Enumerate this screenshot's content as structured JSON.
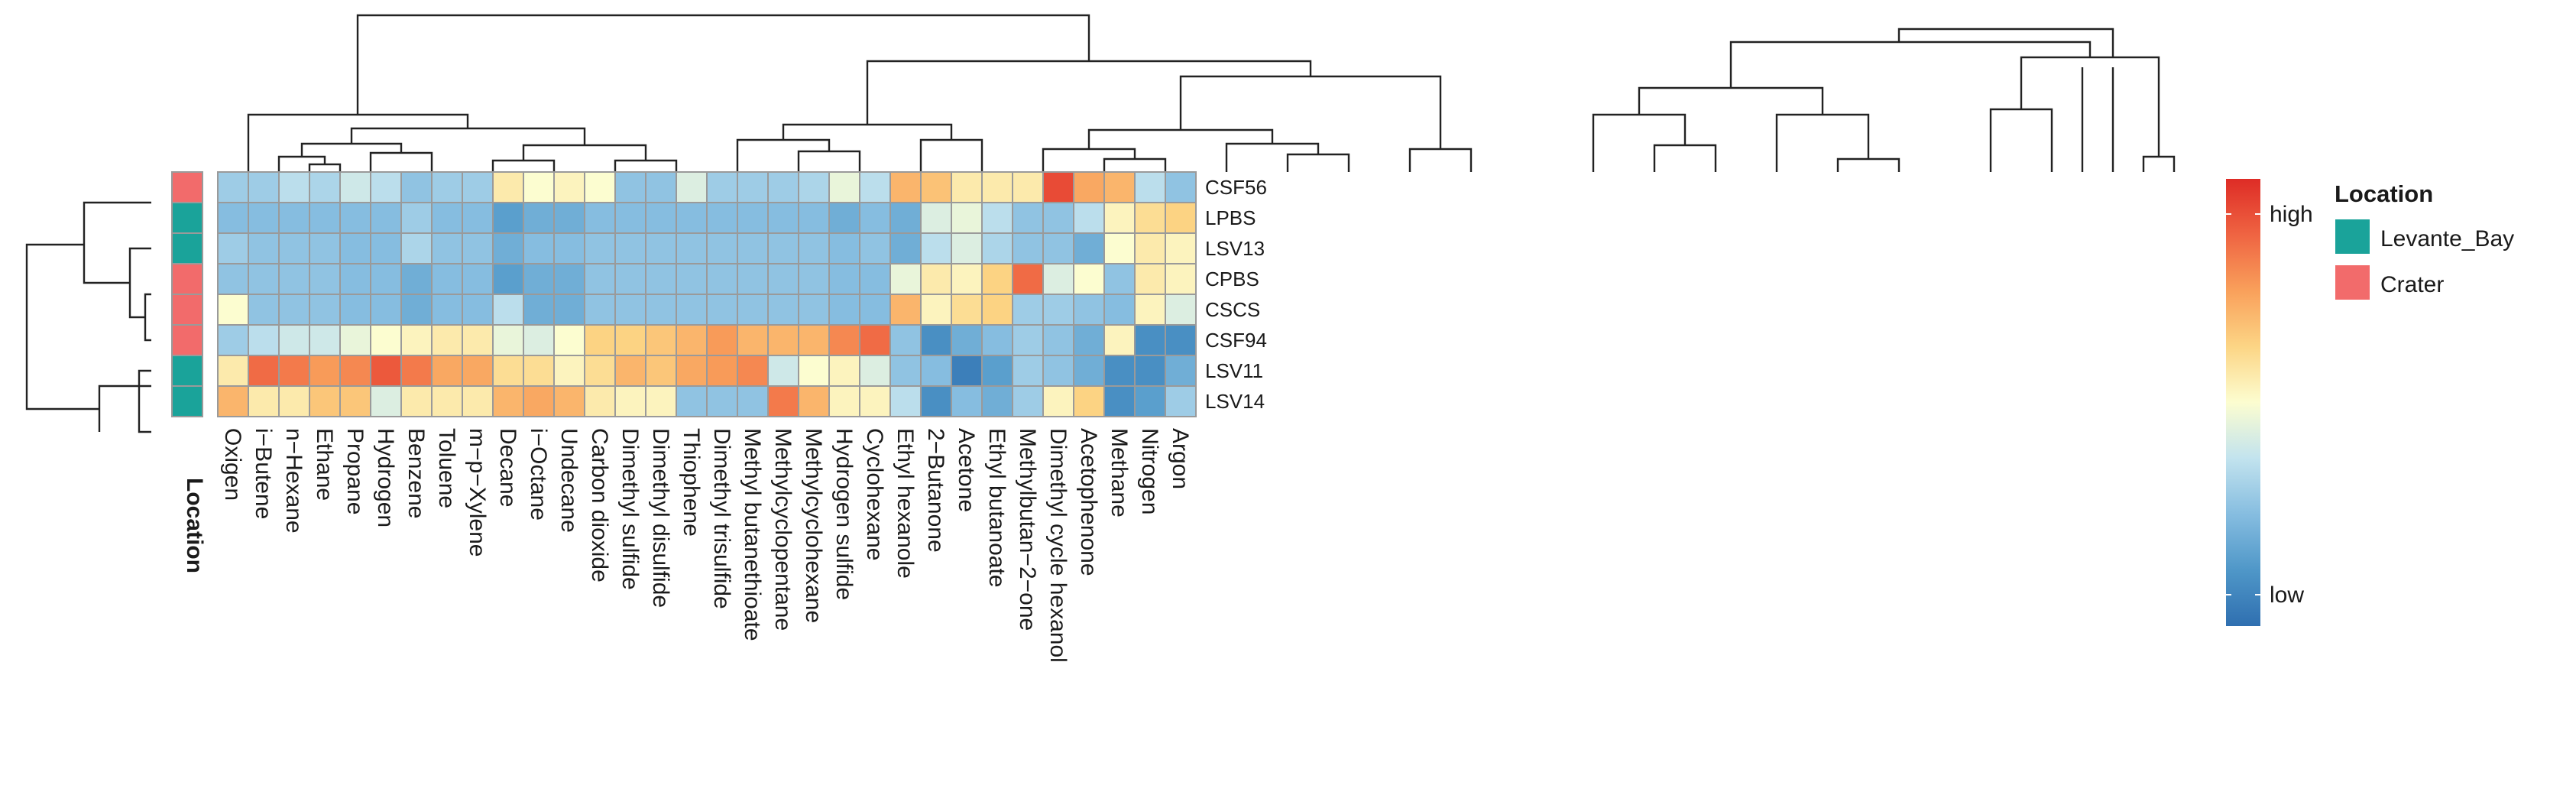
{
  "chart_data": {
    "type": "heatmap",
    "title": "",
    "columns": [
      "Oxigen",
      "i−Butene",
      "n−Hexane",
      "Ethane",
      "Propane",
      "Hydrogen",
      "Benzene",
      "Toluene",
      "m−p−Xylene",
      "Decane",
      "i−Octane",
      "Undecane",
      "Carbon dioxide",
      "Dimethyl sulfide",
      "Dimethyl disulfide",
      "Thiophene",
      "Dimethyl trisulfide",
      "Methyl butanethioate",
      "Methylcyclopentane",
      "Methylcyclohexane",
      "Hydrogen sulfide",
      "Cyclohexane",
      "Ethyl hexanole",
      "2−Butanone",
      "Acetone",
      "Ethyl butanoate",
      "Methylbutan−2−one",
      "Dimethyl cycle hexanol",
      "Acetophenone",
      "Methane",
      "Nitrogen",
      "Argon"
    ],
    "rows": [
      "CSF56",
      "LPBS",
      "LSV13",
      "CPBS",
      "CSCS",
      "CSF94",
      "LSV11",
      "LSV14"
    ],
    "annotation": {
      "axis_label": "Location",
      "title": "Location",
      "levels": [
        {
          "name": "Levante_Bay",
          "color": "#1aa39a"
        },
        {
          "name": "Crater",
          "color": "#f26b6b"
        }
      ],
      "row_groups": [
        "Crater",
        "Levante_Bay",
        "Levante_Bay",
        "Crater",
        "Crater",
        "Crater",
        "Levante_Bay",
        "Levante_Bay"
      ]
    },
    "color_scale": {
      "low_label": "low",
      "high_label": "high",
      "range": [
        0,
        1
      ],
      "stops": [
        "#2f6fb0",
        "#4f97c8",
        "#86bde0",
        "#c2e3ee",
        "#fcfdd0",
        "#fcd585",
        "#f9a05b",
        "#ef6442",
        "#de2c26"
      ]
    },
    "values": [
      [
        0.3,
        0.3,
        0.36,
        0.33,
        0.4,
        0.36,
        0.27,
        0.3,
        0.3,
        0.56,
        0.5,
        0.53,
        0.5,
        0.27,
        0.27,
        0.43,
        0.3,
        0.3,
        0.3,
        0.33,
        0.46,
        0.36,
        0.7,
        0.67,
        0.56,
        0.56,
        0.56,
        0.93,
        0.73,
        0.7,
        0.36,
        0.27
      ],
      [
        0.25,
        0.25,
        0.25,
        0.25,
        0.25,
        0.25,
        0.3,
        0.25,
        0.25,
        0.15,
        0.2,
        0.2,
        0.25,
        0.25,
        0.25,
        0.25,
        0.25,
        0.25,
        0.25,
        0.25,
        0.2,
        0.25,
        0.2,
        0.43,
        0.46,
        0.36,
        0.27,
        0.27,
        0.36,
        0.53,
        0.6,
        0.63
      ],
      [
        0.3,
        0.27,
        0.27,
        0.27,
        0.25,
        0.25,
        0.33,
        0.27,
        0.27,
        0.2,
        0.25,
        0.25,
        0.27,
        0.27,
        0.27,
        0.27,
        0.27,
        0.27,
        0.27,
        0.27,
        0.25,
        0.27,
        0.2,
        0.36,
        0.43,
        0.33,
        0.27,
        0.27,
        0.2,
        0.5,
        0.56,
        0.53
      ],
      [
        0.27,
        0.27,
        0.27,
        0.27,
        0.25,
        0.25,
        0.2,
        0.25,
        0.25,
        0.15,
        0.2,
        0.2,
        0.27,
        0.27,
        0.27,
        0.27,
        0.27,
        0.27,
        0.27,
        0.27,
        0.25,
        0.25,
        0.46,
        0.56,
        0.53,
        0.63,
        0.86,
        0.43,
        0.5,
        0.27,
        0.56,
        0.53
      ],
      [
        0.5,
        0.27,
        0.27,
        0.27,
        0.25,
        0.25,
        0.2,
        0.25,
        0.25,
        0.36,
        0.2,
        0.2,
        0.27,
        0.27,
        0.27,
        0.27,
        0.27,
        0.27,
        0.27,
        0.27,
        0.25,
        0.25,
        0.7,
        0.53,
        0.6,
        0.63,
        0.3,
        0.3,
        0.27,
        0.25,
        0.53,
        0.43
      ],
      [
        0.3,
        0.36,
        0.4,
        0.4,
        0.46,
        0.5,
        0.53,
        0.56,
        0.56,
        0.46,
        0.43,
        0.5,
        0.63,
        0.63,
        0.66,
        0.7,
        0.76,
        0.7,
        0.7,
        0.7,
        0.8,
        0.86,
        0.27,
        0.1,
        0.2,
        0.25,
        0.3,
        0.27,
        0.2,
        0.53,
        0.1,
        0.1
      ],
      [
        0.56,
        0.86,
        0.83,
        0.76,
        0.8,
        0.9,
        0.83,
        0.73,
        0.73,
        0.6,
        0.6,
        0.53,
        0.6,
        0.7,
        0.66,
        0.73,
        0.76,
        0.8,
        0.4,
        0.5,
        0.53,
        0.43,
        0.27,
        0.25,
        0.05,
        0.15,
        0.3,
        0.27,
        0.2,
        0.1,
        0.1,
        0.2
      ],
      [
        0.7,
        0.56,
        0.56,
        0.66,
        0.66,
        0.43,
        0.56,
        0.56,
        0.56,
        0.7,
        0.73,
        0.7,
        0.56,
        0.53,
        0.53,
        0.27,
        0.27,
        0.27,
        0.83,
        0.7,
        0.53,
        0.53,
        0.36,
        0.1,
        0.25,
        0.2,
        0.3,
        0.53,
        0.63,
        0.1,
        0.15,
        0.3
      ]
    ]
  }
}
